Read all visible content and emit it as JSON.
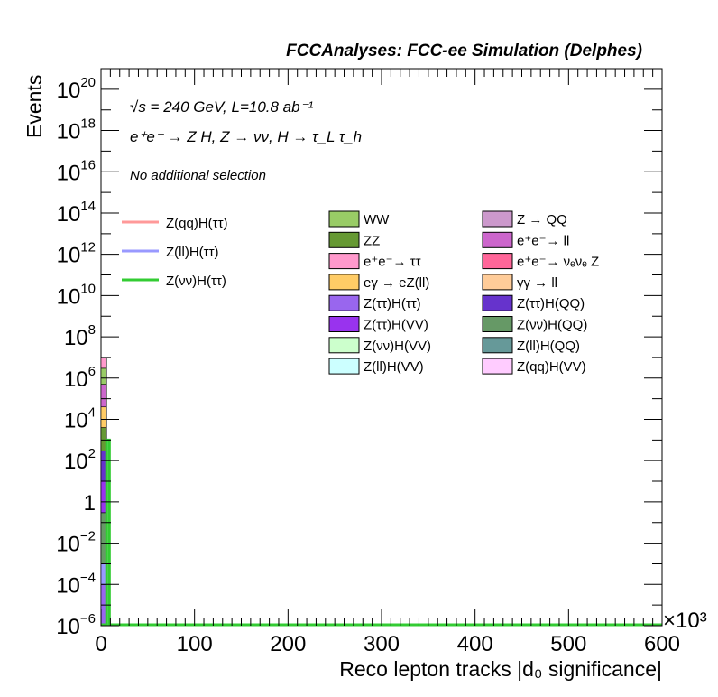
{
  "chart_data": {
    "type": "bar",
    "title": "FCCAnalyses: FCC-ee Simulation (Delphes)",
    "annotations": {
      "energy_lumi": "√s = 240 GeV, L=10.8 ab⁻¹",
      "process": "e⁺e⁻ → Z H, Z → νν, H → τ_L τ_h",
      "selection": "No additional selection"
    },
    "xlabel": "Reco lepton tracks |d₀ significance|",
    "ylabel": "Events",
    "x_multiplier": "×10³",
    "xlim": [
      0,
      600
    ],
    "ylim": [
      1e-06,
      1e+21
    ],
    "y_scale": "log",
    "x_ticks": [
      "0",
      "100",
      "200",
      "300",
      "400",
      "500",
      "600"
    ],
    "y_ticks": [
      {
        "base": "10",
        "exp": "−6",
        "value": 1e-06
      },
      {
        "base": "10",
        "exp": "−4",
        "value": 0.0001
      },
      {
        "base": "10",
        "exp": "−2",
        "value": 0.01
      },
      {
        "base": "1",
        "exp": "",
        "value": 1
      },
      {
        "base": "10",
        "exp": "2",
        "value": 100.0
      },
      {
        "base": "10",
        "exp": "4",
        "value": 10000.0
      },
      {
        "base": "10",
        "exp": "6",
        "value": 1000000.0
      },
      {
        "base": "10",
        "exp": "8",
        "value": 100000000.0
      },
      {
        "base": "10",
        "exp": "10",
        "value": 10000000000.0
      },
      {
        "base": "10",
        "exp": "12",
        "value": 1000000000000.0
      },
      {
        "base": "10",
        "exp": "14",
        "value": 100000000000000.0
      },
      {
        "base": "10",
        "exp": "16",
        "value": 1e+16
      },
      {
        "base": "10",
        "exp": "18",
        "value": 1e+18
      },
      {
        "base": "10",
        "exp": "20",
        "value": 1e+20
      }
    ],
    "stacked_first_bin": {
      "x_range": [
        0,
        6
      ],
      "layers": [
        {
          "name": "Z(ττ)H(ττ)",
          "from": 1e-06,
          "to": 0.0001,
          "color": "#9966ee"
        },
        {
          "name": "Z(ll)H(ττ)",
          "from": 0.0001,
          "to": 0.001,
          "color": "#9999ff"
        },
        {
          "name": "Z(νν)H(QQ)",
          "from": 0.001,
          "to": 0.3,
          "color": "#669966"
        },
        {
          "name": "Z(ττ)H(VV)",
          "from": 0.3,
          "to": 10.0,
          "color": "#9933ee"
        },
        {
          "name": "Z(ττ)H(QQ)",
          "from": 10.0,
          "to": 300.0,
          "color": "#6633cc"
        },
        {
          "name": "ZZ",
          "from": 300.0,
          "to": 4000.0,
          "color": "#669933"
        },
        {
          "name": "eγ → eZ(ll)",
          "from": 4000.0,
          "to": 40000.0,
          "color": "#ffcc66"
        },
        {
          "name": "e⁺e⁻ → ll",
          "from": 40000.0,
          "to": 500000.0,
          "color": "#cc66cc"
        },
        {
          "name": "WW",
          "from": 500000.0,
          "to": 3000000.0,
          "color": "#99cc66"
        },
        {
          "name": "e⁺e⁻ → ττ",
          "from": 3000000.0,
          "to": 10000000.0,
          "color": "#ff99cc"
        }
      ]
    },
    "signal_lines": [
      {
        "name": "Z(qq)H(ττ)",
        "color": "#ff9999",
        "points": [
          [
            0,
            1e-06
          ],
          [
            6,
            1e-06
          ],
          [
            6,
            1e-06
          ],
          [
            600,
            1e-06
          ]
        ]
      },
      {
        "name": "Z(ll)H(ττ)",
        "color": "#9999ff",
        "points": [
          [
            0,
            1e-06
          ],
          [
            6,
            1e-06
          ],
          [
            6,
            1e-06
          ],
          [
            600,
            1e-06
          ]
        ]
      },
      {
        "name": "Z(νν)H(ττ)",
        "color": "#33cc33",
        "points": [
          [
            0,
            1e-06
          ],
          [
            6,
            1e-06
          ],
          [
            6,
            1000.0
          ],
          [
            9,
            1000.0
          ],
          [
            9,
            1e-06
          ],
          [
            600,
            1e-06
          ]
        ]
      }
    ],
    "legend_lines": [
      {
        "name": "Z(qq)H(ττ)",
        "color": "#ff9999"
      },
      {
        "name": "Z(ll)H(ττ)",
        "color": "#9999ff"
      },
      {
        "name": "Z(νν)H(ττ)",
        "color": "#33cc33"
      }
    ],
    "legend_boxes_col1": [
      {
        "name": "WW",
        "color": "#99cc66"
      },
      {
        "name": "ZZ",
        "color": "#669933"
      },
      {
        "name": "e⁺e⁻→ ττ",
        "color": "#ff99cc"
      },
      {
        "name": "eγ → eZ(ll)",
        "color": "#ffcc66"
      },
      {
        "name": "Z(ττ)H(ττ)",
        "color": "#9966ee"
      },
      {
        "name": "Z(ττ)H(VV)",
        "color": "#9933ee"
      },
      {
        "name": "Z(νν)H(VV)",
        "color": "#ccffcc"
      },
      {
        "name": "Z(ll)H(VV)",
        "color": "#ccffff"
      }
    ],
    "legend_boxes_col2": [
      {
        "name": "Z → QQ",
        "color": "#cc99cc"
      },
      {
        "name": "e⁺e⁻→ ll",
        "color": "#cc66cc"
      },
      {
        "name": "e⁺e⁻→ νₑνₑ Z",
        "color": "#ff6699"
      },
      {
        "name": "γγ → ll",
        "color": "#ffcc99"
      },
      {
        "name": "Z(ττ)H(QQ)",
        "color": "#6633cc"
      },
      {
        "name": "Z(νν)H(QQ)",
        "color": "#669966"
      },
      {
        "name": "Z(ll)H(QQ)",
        "color": "#669999"
      },
      {
        "name": "Z(qq)H(VV)",
        "color": "#ffccff"
      }
    ]
  }
}
